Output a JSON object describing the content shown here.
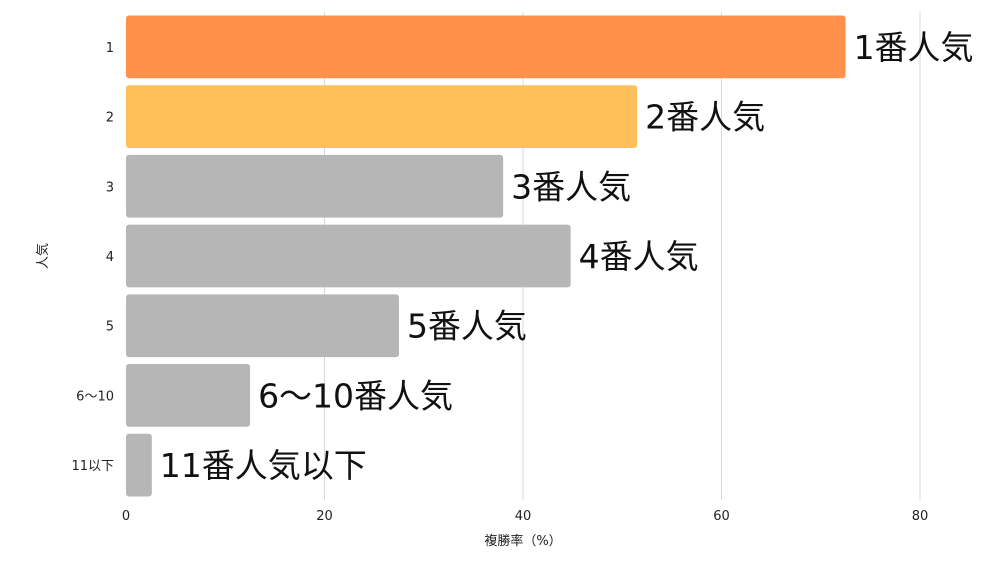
{
  "chart_data": {
    "type": "bar",
    "orientation": "horizontal",
    "title": "",
    "xlabel": "複勝率（%）",
    "ylabel": "人気",
    "xlim": [
      0,
      80
    ],
    "x_ticks": [
      0,
      20,
      40,
      60,
      80
    ],
    "grid": true,
    "categories": [
      "1",
      "2",
      "3",
      "4",
      "5",
      "6〜10",
      "11以下"
    ],
    "values": [
      72.5,
      51.5,
      38.0,
      44.8,
      27.5,
      12.5,
      2.6
    ],
    "data_labels": [
      "1番人気",
      "2番人気",
      "3番人気",
      "4番人気",
      "5番人気",
      "6〜10番人気",
      "11番人気以下"
    ],
    "colors": [
      "#ff914d",
      "#ffbf5a",
      "#b6b6b6",
      "#b6b6b6",
      "#b6b6b6",
      "#b6b6b6",
      "#b6b6b6"
    ]
  }
}
